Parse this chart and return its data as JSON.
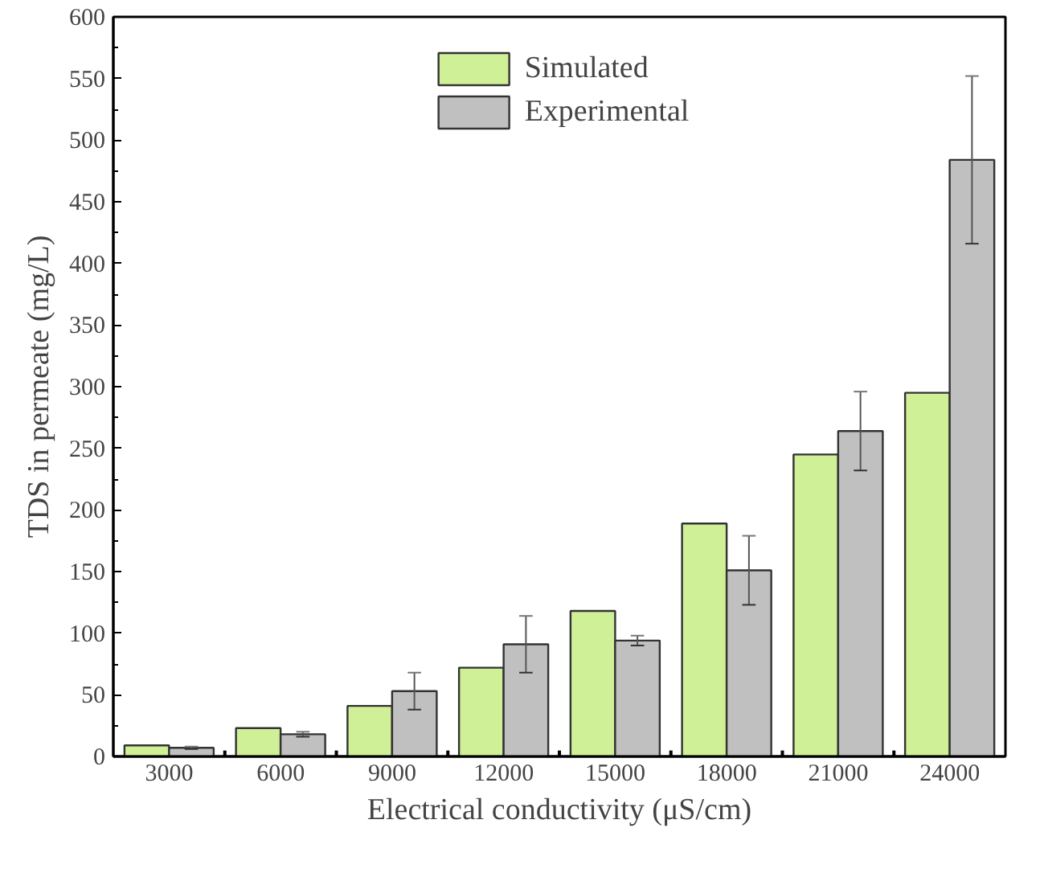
{
  "chart_data": {
    "type": "bar",
    "xlabel": "Electrical conductivity (μS/cm)",
    "ylabel": "TDS in permeate (mg/L)",
    "categories": [
      "3000",
      "6000",
      "9000",
      "12000",
      "15000",
      "18000",
      "21000",
      "24000"
    ],
    "series": [
      {
        "name": "Simulated",
        "color": "#cff096",
        "values": [
          9,
          23,
          41,
          72,
          118,
          189,
          245,
          295
        ]
      },
      {
        "name": "Experimental",
        "color": "#c0c0c0",
        "values": [
          7,
          18,
          53,
          91,
          94,
          151,
          264,
          484
        ],
        "errors": [
          1,
          2,
          15,
          23,
          4,
          28,
          32,
          68
        ]
      }
    ],
    "ylim": [
      0,
      600
    ],
    "yticks": [
      0,
      50,
      100,
      150,
      200,
      250,
      300,
      350,
      400,
      450,
      500,
      550,
      600
    ],
    "grid": false,
    "legend": "top"
  }
}
